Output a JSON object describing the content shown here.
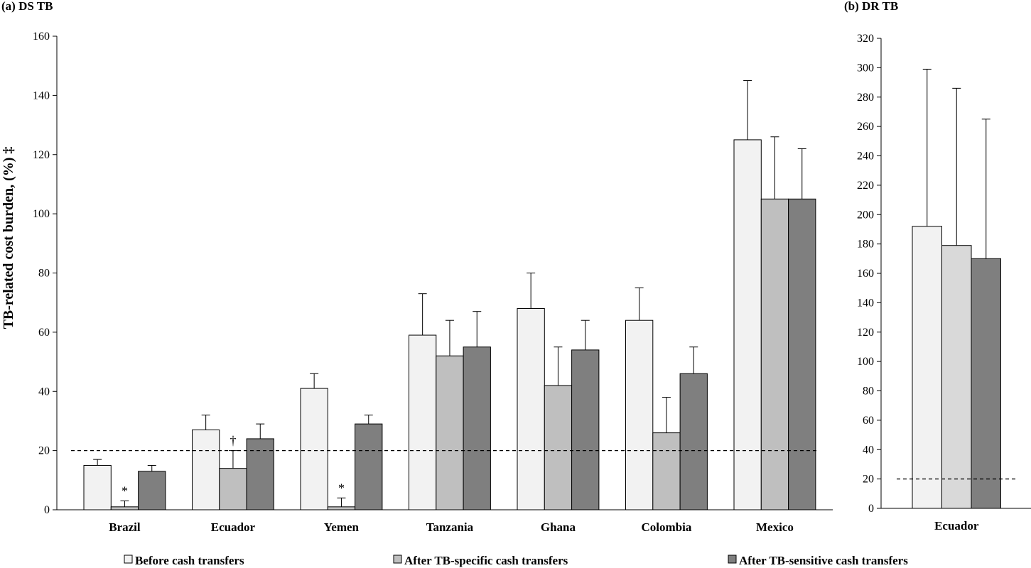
{
  "chart_data": [
    {
      "type": "bar",
      "title": "(a) DS TB",
      "ylabel": "TB-related cost burden, (%) ‡",
      "ylim": [
        0,
        160
      ],
      "yticks": [
        0,
        20,
        40,
        60,
        80,
        100,
        120,
        140,
        160
      ],
      "categories": [
        "Brazil",
        "Ecuador",
        "Yemen",
        "Tanzania",
        "Ghana",
        "Colombia",
        "Mexico"
      ],
      "series": [
        {
          "name": "Before cash transfers",
          "color": "#f2f2f2",
          "values": [
            15,
            27,
            41,
            59,
            68,
            64,
            125
          ],
          "error_upper": [
            17,
            32,
            46,
            73,
            80,
            75,
            145
          ]
        },
        {
          "name": "After TB-specific cash transfers",
          "color": "#bfbfbf",
          "values": [
            1,
            14,
            1,
            52,
            42,
            26,
            105
          ],
          "error_upper": [
            3,
            20,
            4,
            64,
            55,
            38,
            126
          ]
        },
        {
          "name": "After TB-sensitive cash transfers",
          "color": "#7f7f7f",
          "values": [
            13,
            24,
            29,
            55,
            54,
            46,
            105
          ],
          "error_upper": [
            15,
            29,
            32,
            67,
            64,
            55,
            122
          ]
        }
      ],
      "reference_line": 20,
      "annotations": [
        {
          "category": "Brazil",
          "series": 1,
          "text": "*"
        },
        {
          "category": "Ecuador",
          "series": 1,
          "text": "†"
        },
        {
          "category": "Yemen",
          "series": 1,
          "text": "*"
        }
      ],
      "grid": false
    },
    {
      "type": "bar",
      "title": "(b) DR TB",
      "ylim": [
        0,
        320
      ],
      "yticks": [
        0,
        20,
        40,
        60,
        80,
        100,
        120,
        140,
        160,
        180,
        200,
        220,
        240,
        260,
        280,
        300,
        320
      ],
      "categories": [
        "Ecuador"
      ],
      "series": [
        {
          "name": "Before cash transfers",
          "color": "#f2f2f2",
          "values": [
            192
          ],
          "error_upper": [
            299
          ]
        },
        {
          "name": "After TB-specific cash transfers",
          "color": "#d9d9d9",
          "values": [
            179
          ],
          "error_upper": [
            286
          ]
        },
        {
          "name": "After TB-sensitive cash transfers",
          "color": "#7f7f7f",
          "values": [
            170
          ],
          "error_upper": [
            265
          ]
        }
      ],
      "reference_line": 20,
      "grid": false
    }
  ],
  "legend": {
    "placement": "bottom",
    "items": [
      {
        "label": "Before cash transfers",
        "color": "#f2f2f2"
      },
      {
        "label": "After TB-specific cash transfers",
        "color": "#bfbfbf"
      },
      {
        "label": "After TB-sensitive cash transfers",
        "color": "#7f7f7f"
      }
    ]
  }
}
